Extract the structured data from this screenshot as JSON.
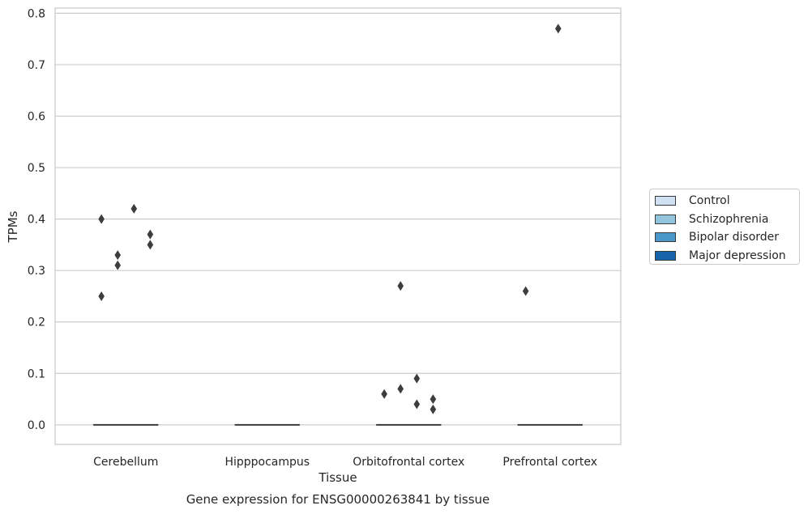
{
  "chart_data": {
    "type": "box",
    "title": "Gene expression for ENSG00000263841 by tissue",
    "xlabel": "Tissue",
    "ylabel": "TPMs",
    "ylim": [
      -0.038,
      0.81
    ],
    "yticks": [
      "0.0",
      "0.1",
      "0.2",
      "0.3",
      "0.4",
      "0.5",
      "0.6",
      "0.7",
      "0.8"
    ],
    "categories": [
      "Cerebellum",
      "Hipppocampus",
      "Orbitofrontal cortex",
      "Prefrontal cortex"
    ],
    "grid": true,
    "legend_position": "right",
    "series": [
      {
        "name": "Control",
        "color": "#cfe1f2"
      },
      {
        "name": "Schizophrenia",
        "color": "#93c4de"
      },
      {
        "name": "Bipolar disorder",
        "color": "#4a98c9"
      },
      {
        "name": "Major depression",
        "color": "#1764ab"
      }
    ],
    "boxes": [
      {
        "category": "Cerebellum",
        "median": 0
      },
      {
        "category": "Hipppocampus",
        "median": 0
      },
      {
        "category": "Orbitofrontal cortex",
        "median": 0
      },
      {
        "category": "Prefrontal cortex",
        "median": 0
      }
    ],
    "outliers": [
      {
        "category": "Cerebellum",
        "series": "Control",
        "values": [
          0.4,
          0.25
        ]
      },
      {
        "category": "Cerebellum",
        "series": "Schizophrenia",
        "values": [
          0.33,
          0.31
        ]
      },
      {
        "category": "Cerebellum",
        "series": "Bipolar disorder",
        "values": [
          0.42
        ]
      },
      {
        "category": "Cerebellum",
        "series": "Major depression",
        "values": [
          0.37,
          0.35
        ]
      },
      {
        "category": "Orbitofrontal cortex",
        "series": "Control",
        "values": [
          0.06
        ]
      },
      {
        "category": "Orbitofrontal cortex",
        "series": "Schizophrenia",
        "values": [
          0.27,
          0.07
        ]
      },
      {
        "category": "Orbitofrontal cortex",
        "series": "Bipolar disorder",
        "values": [
          0.09,
          0.04
        ]
      },
      {
        "category": "Orbitofrontal cortex",
        "series": "Major depression",
        "values": [
          0.05,
          0.03
        ]
      },
      {
        "category": "Prefrontal cortex",
        "series": "Control",
        "values": [
          0.26
        ]
      },
      {
        "category": "Prefrontal cortex",
        "series": "Bipolar disorder",
        "values": [
          0.77
        ]
      }
    ]
  }
}
